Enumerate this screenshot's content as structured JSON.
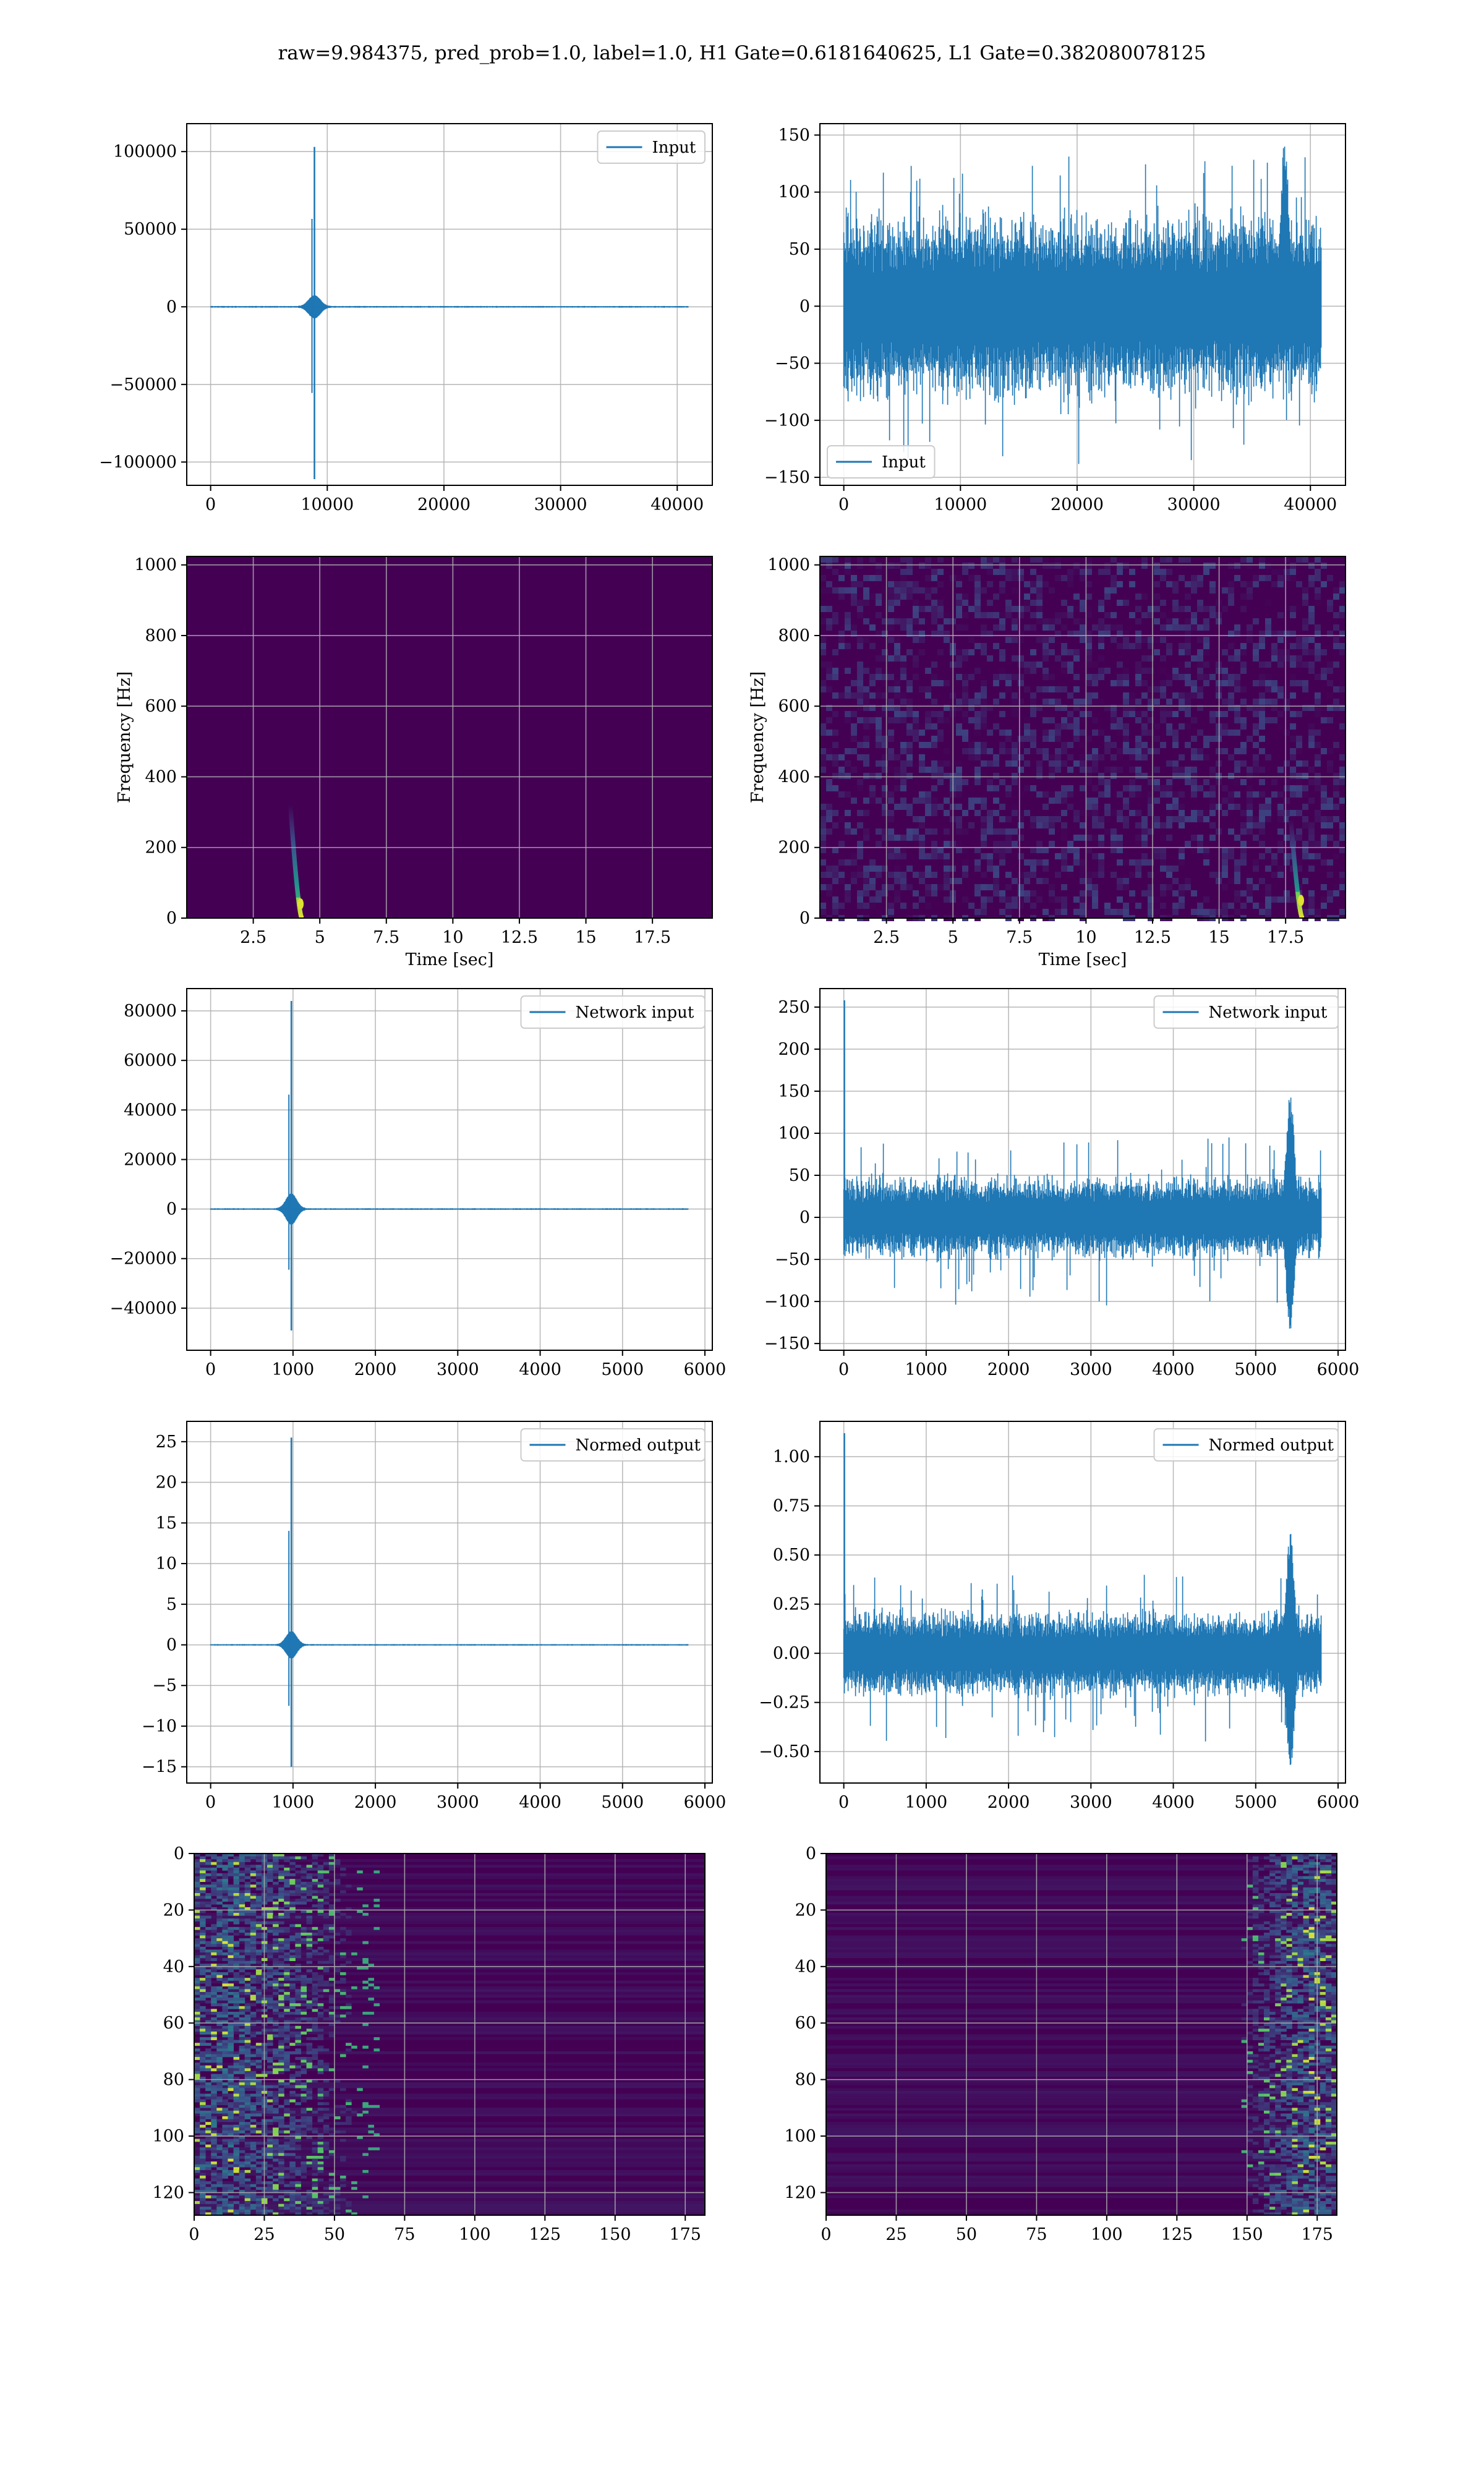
{
  "figure": {
    "suptitle": "raw=9.984375, pred_prob=1.0, label=1.0, H1 Gate=0.6181640625, L1 Gate=0.382080078125"
  },
  "colors": {
    "line": "#1f77b4",
    "grid": "#b0b0b0",
    "viridis_low": "#440154",
    "viridis_mid": "#21918c",
    "viridis_high": "#fde725"
  },
  "chart_data": [
    {
      "id": "input-h1",
      "type": "line",
      "title": "",
      "xlabel": "",
      "ylabel": "",
      "legend": "Input",
      "legend_loc": "top-right",
      "xlim": [
        -2048,
        43008
      ],
      "ylim": [
        -115000,
        118000
      ],
      "xticks": [
        0,
        10000,
        20000,
        30000,
        40000
      ],
      "yticks": [
        -100000,
        -50000,
        0,
        50000,
        100000
      ],
      "ytick_labels": [
        "−100000",
        "−50000",
        "0",
        "50000",
        "100000"
      ],
      "grid": true,
      "signal": {
        "kind": "burst",
        "xmax": 40960,
        "center": 8900,
        "peak_pos": 103000,
        "peak_neg": -111000,
        "core_amp": 7000,
        "core_width": 700,
        "floor_amp": 400
      }
    },
    {
      "id": "input-l1",
      "type": "line",
      "title": "",
      "xlabel": "",
      "ylabel": "",
      "legend": "Input",
      "legend_loc": "bottom-left",
      "xlim": [
        -2048,
        43008
      ],
      "ylim": [
        -157,
        160
      ],
      "xticks": [
        0,
        10000,
        20000,
        30000,
        40000
      ],
      "yticks": [
        -150,
        -100,
        -50,
        0,
        50,
        100,
        150
      ],
      "ytick_labels": [
        "−150",
        "−100",
        "−50",
        "0",
        "50",
        "100",
        "150"
      ],
      "grid": true,
      "signal": {
        "kind": "noise",
        "xmax": 40960,
        "band": 75,
        "spike_max": 135,
        "spike_min": -140,
        "late_peak_x": 37800,
        "late_peak": 148
      }
    },
    {
      "id": "spectrogram-h1",
      "type": "heatmap",
      "title": "",
      "xlabel": "Time [sec]",
      "ylabel": "Frequency [Hz]",
      "xlim": [
        0,
        19.75
      ],
      "ylim": [
        0,
        1024
      ],
      "xticks": [
        2.5,
        5.0,
        7.5,
        10.0,
        12.5,
        15.0,
        17.5
      ],
      "yticks": [
        0,
        200,
        400,
        600,
        800,
        1000
      ],
      "grid": true,
      "heat": {
        "background": "dark",
        "track_time": 4.3,
        "track_fmax": 320,
        "track_fpeak": 40
      }
    },
    {
      "id": "spectrogram-l1",
      "type": "heatmap",
      "title": "",
      "xlabel": "Time [sec]",
      "ylabel": "Frequency [Hz]",
      "xlim": [
        0,
        19.75
      ],
      "ylim": [
        0,
        1024
      ],
      "xticks": [
        2.5,
        5.0,
        7.5,
        10.0,
        12.5,
        15.0,
        17.5
      ],
      "yticks": [
        0,
        200,
        400,
        600,
        800,
        1000
      ],
      "grid": true,
      "heat": {
        "background": "speckled",
        "track_time": 18.1,
        "track_fmax": 280,
        "track_fpeak": 50
      }
    },
    {
      "id": "network-input-h1",
      "type": "line",
      "title": "",
      "xlabel": "",
      "ylabel": "",
      "legend": "Network input",
      "legend_loc": "top-right",
      "xlim": [
        -290,
        6090
      ],
      "ylim": [
        -57000,
        89000
      ],
      "xticks": [
        0,
        1000,
        2000,
        3000,
        4000,
        5000,
        6000
      ],
      "yticks": [
        -40000,
        -20000,
        0,
        20000,
        40000,
        60000,
        80000
      ],
      "ytick_labels": [
        "−40000",
        "−20000",
        "0",
        "20000",
        "40000",
        "60000",
        "80000"
      ],
      "grid": true,
      "signal": {
        "kind": "burst",
        "xmax": 5800,
        "center": 980,
        "peak_pos": 84000,
        "peak_neg": -49000,
        "core_amp": 6000,
        "core_width": 90,
        "floor_amp": 250
      }
    },
    {
      "id": "network-input-l1",
      "type": "line",
      "title": "",
      "xlabel": "",
      "ylabel": "",
      "legend": "Network input",
      "legend_loc": "top-right",
      "xlim": [
        -290,
        6090
      ],
      "ylim": [
        -158,
        272
      ],
      "xticks": [
        0,
        1000,
        2000,
        3000,
        4000,
        5000,
        6000
      ],
      "yticks": [
        -150,
        -100,
        -50,
        0,
        50,
        100,
        150,
        200,
        250
      ],
      "ytick_labels": [
        "−150",
        "−100",
        "−50",
        "0",
        "50",
        "100",
        "150",
        "200",
        "250"
      ],
      "grid": true,
      "signal": {
        "kind": "noise",
        "xmax": 5800,
        "band": 45,
        "spike_max": 95,
        "spike_min": -105,
        "first_spike": 258,
        "late_peak_x": 5420,
        "late_peak": 148,
        "late_min": -140
      }
    },
    {
      "id": "normed-output-h1",
      "type": "line",
      "title": "",
      "xlabel": "",
      "ylabel": "",
      "legend": "Normed output",
      "legend_loc": "top-right",
      "xlim": [
        -290,
        6090
      ],
      "ylim": [
        -17,
        27.5
      ],
      "xticks": [
        0,
        1000,
        2000,
        3000,
        4000,
        5000,
        6000
      ],
      "yticks": [
        -15,
        -10,
        -5,
        0,
        5,
        10,
        15,
        20,
        25
      ],
      "ytick_labels": [
        "−15",
        "−10",
        "−5",
        "0",
        "5",
        "10",
        "15",
        "20",
        "25"
      ],
      "grid": true,
      "signal": {
        "kind": "burst",
        "xmax": 5800,
        "center": 980,
        "peak_pos": 25.5,
        "peak_neg": -15,
        "core_amp": 1.6,
        "core_width": 90,
        "floor_amp": 0.07
      }
    },
    {
      "id": "normed-output-l1",
      "type": "line",
      "title": "",
      "xlabel": "",
      "ylabel": "",
      "legend": "Normed output",
      "legend_loc": "top-right",
      "xlim": [
        -290,
        6090
      ],
      "ylim": [
        -0.66,
        1.18
      ],
      "xticks": [
        0,
        1000,
        2000,
        3000,
        4000,
        5000,
        6000
      ],
      "yticks": [
        -0.5,
        -0.25,
        0.0,
        0.25,
        0.5,
        0.75,
        1.0
      ],
      "ytick_labels": [
        "−0.50",
        "−0.25",
        "0.00",
        "0.25",
        "0.50",
        "0.75",
        "1.00"
      ],
      "grid": true,
      "signal": {
        "kind": "noise",
        "xmax": 5800,
        "band": 0.2,
        "spike_max": 0.4,
        "spike_min": -0.45,
        "first_spike": 1.12,
        "late_peak_x": 5420,
        "late_peak": 0.62,
        "late_min": -0.6
      }
    },
    {
      "id": "feature-map-h1",
      "type": "heatmap",
      "title": "",
      "xlabel": "",
      "ylabel": "",
      "xlim": [
        0,
        182
      ],
      "ylim": [
        128,
        0
      ],
      "xticks": [
        0,
        25,
        50,
        75,
        100,
        125,
        150,
        175
      ],
      "yticks": [
        0,
        20,
        40,
        60,
        80,
        100,
        120
      ],
      "grid": true,
      "heat": {
        "background": "dark",
        "active_cols": [
          0,
          65
        ],
        "rows": 128
      }
    },
    {
      "id": "feature-map-l1",
      "type": "heatmap",
      "title": "",
      "xlabel": "",
      "ylabel": "",
      "xlim": [
        0,
        182
      ],
      "ylim": [
        128,
        0
      ],
      "xticks": [
        0,
        25,
        50,
        75,
        100,
        125,
        150,
        175
      ],
      "yticks": [
        0,
        20,
        40,
        60,
        80,
        100,
        120
      ],
      "grid": true,
      "heat": {
        "background": "dark",
        "active_cols": [
          148,
          182
        ],
        "rows": 128
      }
    }
  ]
}
